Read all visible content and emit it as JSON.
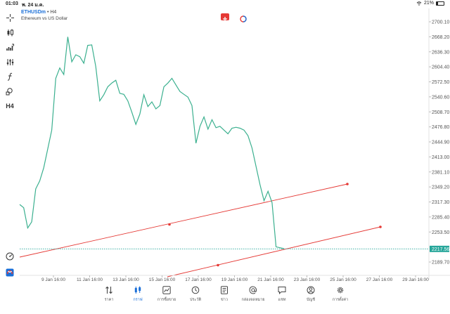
{
  "status": {
    "time": "01:03",
    "date": "พ. 24 ม.ค.",
    "battery": "21%",
    "battery_level": 0.21
  },
  "symbol": {
    "name": "ETHUSDm",
    "separator": "•",
    "timeframe": "H4",
    "description": "Ethereum vs US Dollar"
  },
  "left_toolbar": {
    "timeframe_label": "H4"
  },
  "chart_data": {
    "type": "line",
    "series": [
      {
        "color": "#3bb08f",
        "values": [
          2312,
          2305,
          2262,
          2275,
          2345,
          2362,
          2390,
          2430,
          2470,
          2580,
          2602,
          2588,
          2668,
          2615,
          2630,
          2626,
          2612,
          2650,
          2651,
          2605,
          2532,
          2545,
          2562,
          2570,
          2576,
          2548,
          2546,
          2532,
          2508,
          2482,
          2504,
          2545,
          2520,
          2530,
          2515,
          2522,
          2562,
          2570,
          2580,
          2566,
          2552,
          2546,
          2540,
          2522,
          2442,
          2478,
          2498,
          2472,
          2492,
          2475,
          2478,
          2470,
          2462,
          2474,
          2476,
          2474,
          2470,
          2458,
          2432,
          2393,
          2354,
          2320,
          2340,
          2316,
          2222,
          2220,
          2218
        ]
      }
    ],
    "price_ticks": [
      "2700.10",
      "2668.20",
      "2636.30",
      "2604.40",
      "2572.50",
      "2540.60",
      "2508.70",
      "2476.80",
      "2444.90",
      "2413.00",
      "2381.10",
      "2349.20",
      "2317.30",
      "2285.40",
      "2253.50",
      "2189.70"
    ],
    "current_price": "2217.56",
    "time_ticks": [
      "9 Jan 16:00",
      "11 Jan 16:00",
      "13 Jan 16:00",
      "15 Jan 16:00",
      "17 Jan 16:00",
      "19 Jan 16:00",
      "21 Jan 16:00",
      "23 Jan 16:00",
      "25 Jan 16:00",
      "27 Jan 16:00",
      "29 Jan 16:00"
    ],
    "colors": {
      "line": "#3bb08f",
      "channel": "#e53935",
      "price_tag": "#26a69a"
    }
  },
  "tabs": [
    {
      "label": "ราคา",
      "icon": "sort-arrows-icon"
    },
    {
      "label": "กราฟ",
      "icon": "candles-icon",
      "active": true
    },
    {
      "label": "การซื้อขาย",
      "icon": "trade-chart-icon"
    },
    {
      "label": "ประวัติ",
      "icon": "history-icon"
    },
    {
      "label": "ข่าว",
      "icon": "news-icon"
    },
    {
      "label": "กล่องจดหมาย",
      "icon": "mailbox-icon"
    },
    {
      "label": "แชท",
      "icon": "chat-icon"
    },
    {
      "label": "บัญชี",
      "icon": "account-icon"
    },
    {
      "label": "การตั้งค่า",
      "icon": "settings-icon"
    }
  ]
}
